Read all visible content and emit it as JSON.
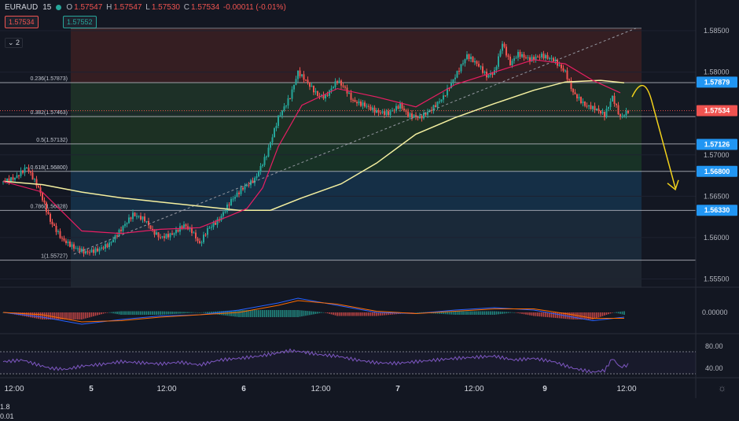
{
  "header": {
    "symbol": "EURAUD",
    "interval": "15",
    "open_label": "O",
    "open": "1.57547",
    "high_label": "H",
    "high": "1.57547",
    "low_label": "L",
    "low": "1.57530",
    "close_label": "C",
    "close": "1.57534",
    "change": "-0.00011 (-0.01%)",
    "sell_price": "1.57534",
    "spread_top": "1.8",
    "spread_bottom": "0.01",
    "buy_price": "1.57552",
    "indicators_collapse": "2"
  },
  "colors": {
    "bull": "#26a69a",
    "bear": "#ef5350",
    "ma_fast": "#e91e63",
    "ma_slow": "#f5f0a0",
    "forecast_arrow": "#f2d21b"
  },
  "chart_data": [
    {
      "type": "candlestick",
      "title": "",
      "symbol": "EURAUD",
      "timeframe": "15",
      "price_axis": {
        "range": [
          1.554,
          1.587
        ],
        "ticks": [
          "1.58500",
          "1.58000",
          "1.57500",
          "1.57000",
          "1.56500",
          "1.56000",
          "1.55500"
        ]
      },
      "time_axis": {
        "ticks": [
          "12:00",
          "5",
          "12:00",
          "6",
          "12:00",
          "7",
          "12:00",
          "9",
          "12:00"
        ]
      },
      "price_labels": [
        {
          "value": "1.57879",
          "color": "#2196f3"
        },
        {
          "value": "1.57534",
          "color": "#ef5350"
        },
        {
          "value": "1.57126",
          "color": "#2196f3"
        },
        {
          "value": "1.56800",
          "color": "#2196f3"
        },
        {
          "value": "1.56330",
          "color": "#2196f3"
        }
      ],
      "fibonacci": {
        "high": 1.5853,
        "low": 1.55727,
        "levels": [
          {
            "label": "0.236(1.57873)",
            "price": 1.57873
          },
          {
            "label": "0.382(1.57463)",
            "price": 1.57463
          },
          {
            "label": "0.5(1.57132)",
            "price": 1.57132
          },
          {
            "label": "0.618(1.56800)",
            "price": 1.568
          },
          {
            "label": "0.786(1.56328)",
            "price": 1.56328
          },
          {
            "label": "1(1.55727)",
            "price": 1.55727
          }
        ]
      },
      "price_anchors": [
        [
          0,
          1.5668
        ],
        [
          3,
          1.5672
        ],
        [
          6,
          1.5685
        ],
        [
          9,
          1.566
        ],
        [
          12,
          1.562
        ],
        [
          15,
          1.5598
        ],
        [
          18,
          1.5588
        ],
        [
          21,
          1.5582
        ],
        [
          24,
          1.5585
        ],
        [
          27,
          1.5592
        ],
        [
          30,
          1.561
        ],
        [
          33,
          1.5628
        ],
        [
          36,
          1.5622
        ],
        [
          38,
          1.5608
        ],
        [
          40,
          1.56
        ],
        [
          43,
          1.5604
        ],
        [
          46,
          1.5615
        ],
        [
          48,
          1.5608
        ],
        [
          50,
          1.5592
        ],
        [
          52,
          1.561
        ],
        [
          55,
          1.5622
        ],
        [
          58,
          1.5645
        ],
        [
          61,
          1.566
        ],
        [
          64,
          1.567
        ],
        [
          67,
          1.57
        ],
        [
          70,
          1.5745
        ],
        [
          73,
          1.577
        ],
        [
          75,
          1.58
        ],
        [
          77,
          1.579
        ],
        [
          80,
          1.5772
        ],
        [
          82,
          1.577
        ],
        [
          85,
          1.579
        ],
        [
          87,
          1.578
        ],
        [
          89,
          1.5765
        ],
        [
          92,
          1.576
        ],
        [
          95,
          1.5752
        ],
        [
          98,
          1.575
        ],
        [
          101,
          1.576
        ],
        [
          103,
          1.5748
        ],
        [
          106,
          1.5745
        ],
        [
          109,
          1.5755
        ],
        [
          112,
          1.577
        ],
        [
          115,
          1.5795
        ],
        [
          118,
          1.582
        ],
        [
          121,
          1.5808
        ],
        [
          123,
          1.5795
        ],
        [
          125,
          1.58
        ],
        [
          127,
          1.5835
        ],
        [
          129,
          1.581
        ],
        [
          131,
          1.5822
        ],
        [
          134,
          1.5815
        ],
        [
          137,
          1.582
        ],
        [
          140,
          1.5815
        ],
        [
          143,
          1.58
        ],
        [
          145,
          1.5775
        ],
        [
          148,
          1.576
        ],
        [
          151,
          1.5755
        ],
        [
          153,
          1.5748
        ],
        [
          155,
          1.577
        ],
        [
          157,
          1.5745
        ],
        [
          159,
          1.5753
        ]
      ],
      "moving_average_fast": [
        [
          0,
          1.5668
        ],
        [
          10,
          1.5655
        ],
        [
          20,
          1.5608
        ],
        [
          30,
          1.5605
        ],
        [
          40,
          1.561
        ],
        [
          50,
          1.5612
        ],
        [
          57,
          1.5625
        ],
        [
          62,
          1.5635
        ],
        [
          66,
          1.566
        ],
        [
          70,
          1.571
        ],
        [
          76,
          1.576
        ],
        [
          85,
          1.578
        ],
        [
          95,
          1.577
        ],
        [
          105,
          1.5758
        ],
        [
          115,
          1.5785
        ],
        [
          125,
          1.58
        ],
        [
          135,
          1.5815
        ],
        [
          143,
          1.581
        ],
        [
          150,
          1.579
        ],
        [
          157,
          1.5775
        ]
      ],
      "moving_average_slow": [
        [
          0,
          1.5668
        ],
        [
          10,
          1.5664
        ],
        [
          20,
          1.5655
        ],
        [
          30,
          1.5648
        ],
        [
          40,
          1.5643
        ],
        [
          50,
          1.5638
        ],
        [
          60,
          1.5633
        ],
        [
          68,
          1.5633
        ],
        [
          76,
          1.5648
        ],
        [
          86,
          1.5665
        ],
        [
          95,
          1.569
        ],
        [
          105,
          1.5725
        ],
        [
          115,
          1.5745
        ],
        [
          125,
          1.5762
        ],
        [
          135,
          1.5778
        ],
        [
          143,
          1.5788
        ],
        [
          152,
          1.579
        ],
        [
          158,
          1.5787
        ]
      ],
      "trendline": {
        "from": [
          18,
          1.558
        ],
        "to": [
          161,
          1.5853
        ]
      },
      "forecast_arrow": [
        [
          160,
          1.577
        ],
        [
          163,
          1.5792
        ],
        [
          165,
          1.5765
        ],
        [
          168,
          1.5712
        ],
        [
          171,
          1.566
        ]
      ]
    },
    {
      "type": "line",
      "title": "",
      "indicator": "MACD",
      "y_ticks": [
        "0.00000"
      ],
      "series": [
        {
          "color": "#2962ff",
          "values": [
            [
              0,
              0.0
            ],
            [
              10,
              -0.0004
            ],
            [
              20,
              -0.001
            ],
            [
              30,
              -0.0006
            ],
            [
              40,
              -0.0003
            ],
            [
              50,
              -0.0002
            ],
            [
              60,
              0.0002
            ],
            [
              70,
              0.0008
            ],
            [
              75,
              0.0012
            ],
            [
              85,
              0.0006
            ],
            [
              95,
              0.0
            ],
            [
              105,
              -0.0001
            ],
            [
              115,
              0.0002
            ],
            [
              125,
              0.0004
            ],
            [
              135,
              0.0002
            ],
            [
              145,
              -0.0004
            ],
            [
              150,
              -0.0007
            ],
            [
              158,
              -0.0004
            ]
          ]
        },
        {
          "color": "#ff6d00",
          "values": [
            [
              0,
              0.0
            ],
            [
              10,
              -0.0002
            ],
            [
              20,
              -0.0008
            ],
            [
              30,
              -0.0007
            ],
            [
              40,
              -0.0004
            ],
            [
              50,
              -0.0002
            ],
            [
              60,
              0.0
            ],
            [
              70,
              0.0006
            ],
            [
              75,
              0.001
            ],
            [
              85,
              0.0007
            ],
            [
              95,
              0.0001
            ],
            [
              105,
              -0.0001
            ],
            [
              115,
              0.0001
            ],
            [
              125,
              0.0003
            ],
            [
              135,
              0.0003
            ],
            [
              145,
              -0.0002
            ],
            [
              150,
              -0.0005
            ],
            [
              158,
              -0.0005
            ]
          ]
        }
      ],
      "histogram_span": [
        0,
        158
      ]
    },
    {
      "type": "line",
      "title": "",
      "indicator": "RSI",
      "y_ticks": [
        "80.00",
        "40.00"
      ],
      "band": [
        30,
        70
      ],
      "series": [
        {
          "color": "#7e57c2",
          "values": [
            [
              0,
              52
            ],
            [
              5,
              55
            ],
            [
              8,
              48
            ],
            [
              12,
              40
            ],
            [
              16,
              38
            ],
            [
              20,
              44
            ],
            [
              25,
              47
            ],
            [
              30,
              52
            ],
            [
              35,
              50
            ],
            [
              40,
              48
            ],
            [
              45,
              51
            ],
            [
              50,
              46
            ],
            [
              55,
              55
            ],
            [
              60,
              58
            ],
            [
              65,
              62
            ],
            [
              70,
              68
            ],
            [
              73,
              72
            ],
            [
              76,
              70
            ],
            [
              80,
              65
            ],
            [
              85,
              62
            ],
            [
              90,
              55
            ],
            [
              95,
              50
            ],
            [
              100,
              49
            ],
            [
              105,
              52
            ],
            [
              110,
              55
            ],
            [
              115,
              58
            ],
            [
              120,
              60
            ],
            [
              125,
              62
            ],
            [
              130,
              55
            ],
            [
              135,
              58
            ],
            [
              140,
              52
            ],
            [
              145,
              40
            ],
            [
              150,
              33
            ],
            [
              153,
              36
            ],
            [
              155,
              58
            ],
            [
              157,
              42
            ],
            [
              159,
              46
            ]
          ]
        }
      ]
    }
  ]
}
